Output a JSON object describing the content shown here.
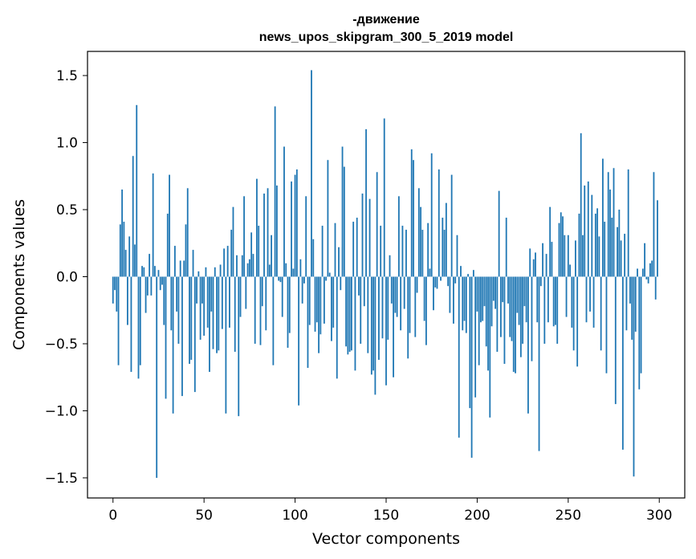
{
  "chart_data": {
    "type": "bar",
    "title": "-движение",
    "subtitle": "news_upos_skipgram_300_5_2019 model",
    "xlabel": "Vector components",
    "ylabel": "Components values",
    "xlim": [
      -14,
      314
    ],
    "ylim": [
      -1.65,
      1.68
    ],
    "xticks": [
      0,
      50,
      100,
      150,
      200,
      250,
      300
    ],
    "xtick_labels": [
      "0",
      "50",
      "100",
      "150",
      "200",
      "250",
      "300"
    ],
    "yticks": [
      -1.5,
      -1.0,
      -0.5,
      0.0,
      0.5,
      1.0,
      1.5
    ],
    "ytick_labels": [
      "−1.5",
      "−1.0",
      "−0.5",
      "0.0",
      "0.5",
      "1.0",
      "1.5"
    ],
    "grid": false,
    "bar_color": "#1f77b4",
    "x": [
      0,
      1,
      2,
      3,
      4,
      5,
      6,
      7,
      8,
      9,
      10,
      11,
      12,
      13,
      14,
      15,
      16,
      17,
      18,
      19,
      20,
      21,
      22,
      23,
      24,
      25,
      26,
      27,
      28,
      29,
      30,
      31,
      32,
      33,
      34,
      35,
      36,
      37,
      38,
      39,
      40,
      41,
      42,
      43,
      44,
      45,
      46,
      47,
      48,
      49,
      50,
      51,
      52,
      53,
      54,
      55,
      56,
      57,
      58,
      59,
      60,
      61,
      62,
      63,
      64,
      65,
      66,
      67,
      68,
      69,
      70,
      71,
      72,
      73,
      74,
      75,
      76,
      77,
      78,
      79,
      80,
      81,
      82,
      83,
      84,
      85,
      86,
      87,
      88,
      89,
      90,
      91,
      92,
      93,
      94,
      95,
      96,
      97,
      98,
      99,
      100,
      101,
      102,
      103,
      104,
      105,
      106,
      107,
      108,
      109,
      110,
      111,
      112,
      113,
      114,
      115,
      116,
      117,
      118,
      119,
      120,
      121,
      122,
      123,
      124,
      125,
      126,
      127,
      128,
      129,
      130,
      131,
      132,
      133,
      134,
      135,
      136,
      137,
      138,
      139,
      140,
      141,
      142,
      143,
      144,
      145,
      146,
      147,
      148,
      149,
      150,
      151,
      152,
      153,
      154,
      155,
      156,
      157,
      158,
      159,
      160,
      161,
      162,
      163,
      164,
      165,
      166,
      167,
      168,
      169,
      170,
      171,
      172,
      173,
      174,
      175,
      176,
      177,
      178,
      179,
      180,
      181,
      182,
      183,
      184,
      185,
      186,
      187,
      188,
      189,
      190,
      191,
      192,
      193,
      194,
      195,
      196,
      197,
      198,
      199,
      200,
      201,
      202,
      203,
      204,
      205,
      206,
      207,
      208,
      209,
      210,
      211,
      212,
      213,
      214,
      215,
      216,
      217,
      218,
      219,
      220,
      221,
      222,
      223,
      224,
      225,
      226,
      227,
      228,
      229,
      230,
      231,
      232,
      233,
      234,
      235,
      236,
      237,
      238,
      239,
      240,
      241,
      242,
      243,
      244,
      245,
      246,
      247,
      248,
      249,
      250,
      251,
      252,
      253,
      254,
      255,
      256,
      257,
      258,
      259,
      260,
      261,
      262,
      263,
      264,
      265,
      266,
      267,
      268,
      269,
      270,
      271,
      272,
      273,
      274,
      275,
      276,
      277,
      278,
      279,
      280,
      281,
      282,
      283,
      284,
      285,
      286,
      287,
      288,
      289,
      290,
      291,
      292,
      293,
      294,
      295,
      296,
      297,
      298,
      299
    ],
    "values": [
      -0.2,
      -0.1,
      -0.26,
      -0.66,
      0.39,
      0.65,
      0.41,
      0.2,
      -0.36,
      0.3,
      -0.71,
      0.9,
      0.24,
      1.28,
      -0.76,
      -0.66,
      0.08,
      0.07,
      -0.27,
      -0.14,
      0.17,
      -0.14,
      0.77,
      0.08,
      -1.5,
      0.05,
      -0.1,
      -0.06,
      -0.36,
      -0.91,
      0.47,
      0.76,
      -0.4,
      -1.02,
      0.23,
      -0.26,
      -0.5,
      0.12,
      -0.89,
      0.12,
      0.39,
      0.66,
      -0.65,
      -0.62,
      0.2,
      -0.86,
      -0.2,
      0.04,
      -0.47,
      -0.2,
      -0.44,
      0.07,
      -0.38,
      -0.71,
      -0.26,
      -0.54,
      0.07,
      -0.57,
      -0.55,
      0.09,
      -0.39,
      0.21,
      -1.02,
      0.23,
      -0.38,
      0.35,
      0.52,
      -0.56,
      0.16,
      -1.04,
      -0.3,
      0.16,
      0.6,
      -0.24,
      0.1,
      0.13,
      0.33,
      0.17,
      -0.5,
      0.73,
      0.38,
      -0.51,
      -0.22,
      0.62,
      -0.4,
      0.66,
      0.09,
      0.31,
      -0.66,
      1.27,
      0.68,
      -0.03,
      -0.04,
      -0.3,
      0.97,
      0.1,
      -0.53,
      -0.42,
      0.71,
      0.06,
      0.76,
      0.8,
      -0.96,
      0.13,
      -0.2,
      -0.05,
      0.6,
      -0.68,
      -0.36,
      1.54,
      0.28,
      -0.41,
      -0.34,
      -0.57,
      -0.43,
      0.38,
      -0.35,
      -0.03,
      0.87,
      0.03,
      -0.48,
      -0.38,
      0.4,
      -0.76,
      0.22,
      -0.1,
      0.97,
      0.82,
      -0.52,
      -0.58,
      -0.56,
      -0.55,
      0.41,
      -0.7,
      0.44,
      -0.14,
      -0.5,
      0.62,
      -0.22,
      1.1,
      -0.57,
      0.58,
      -0.73,
      -0.7,
      -0.88,
      0.78,
      -0.62,
      0.38,
      -0.46,
      1.18,
      -0.81,
      -0.47,
      0.16,
      -0.2,
      -0.75,
      -0.27,
      -0.3,
      0.6,
      -0.4,
      0.38,
      -0.24,
      0.35,
      -0.61,
      -0.42,
      0.95,
      0.87,
      -0.45,
      -0.12,
      0.66,
      0.52,
      0.35,
      -0.33,
      -0.51,
      0.4,
      0.06,
      0.92,
      -0.25,
      -0.08,
      -0.09,
      0.8,
      -0.03,
      0.44,
      0.35,
      0.55,
      -0.07,
      -0.27,
      0.76,
      -0.35,
      -0.05,
      0.31,
      -1.2,
      0.08,
      -0.4,
      -0.33,
      -0.42,
      0.02,
      -0.98,
      -1.35,
      0.05,
      -0.9,
      -0.26,
      -0.66,
      -0.34,
      -0.33,
      -0.22,
      -0.52,
      -0.7,
      -1.05,
      -0.37,
      -0.18,
      -0.24,
      -0.56,
      0.64,
      -0.45,
      -0.19,
      -0.65,
      0.44,
      -0.2,
      -0.45,
      -0.48,
      -0.71,
      -0.72,
      -0.27,
      -0.36,
      -0.6,
      -0.5,
      -0.22,
      -0.34,
      -1.02,
      0.21,
      -0.63,
      0.13,
      0.18,
      -0.34,
      -1.3,
      -0.07,
      0.25,
      -0.5,
      0.17,
      -0.34,
      0.52,
      0.26,
      -0.37,
      -0.36,
      -0.5,
      0.4,
      0.48,
      0.45,
      0.31,
      -0.3,
      0.31,
      0.09,
      -0.38,
      -0.55,
      0.27,
      -0.67,
      0.47,
      1.07,
      0.31,
      0.68,
      -0.34,
      0.71,
      -0.26,
      0.61,
      -0.38,
      0.47,
      0.51,
      0.3,
      -0.55,
      0.88,
      0.41,
      -0.72,
      0.78,
      0.65,
      0.44,
      0.81,
      -0.95,
      0.37,
      0.5,
      0.27,
      -1.29,
      0.32,
      -0.4,
      0.8,
      -0.2,
      -0.47,
      -1.49,
      -0.41,
      0.06,
      -0.84,
      -0.72,
      0.06,
      0.25,
      -0.02,
      -0.05,
      0.1,
      0.12,
      0.78,
      -0.17,
      0.57
    ]
  }
}
